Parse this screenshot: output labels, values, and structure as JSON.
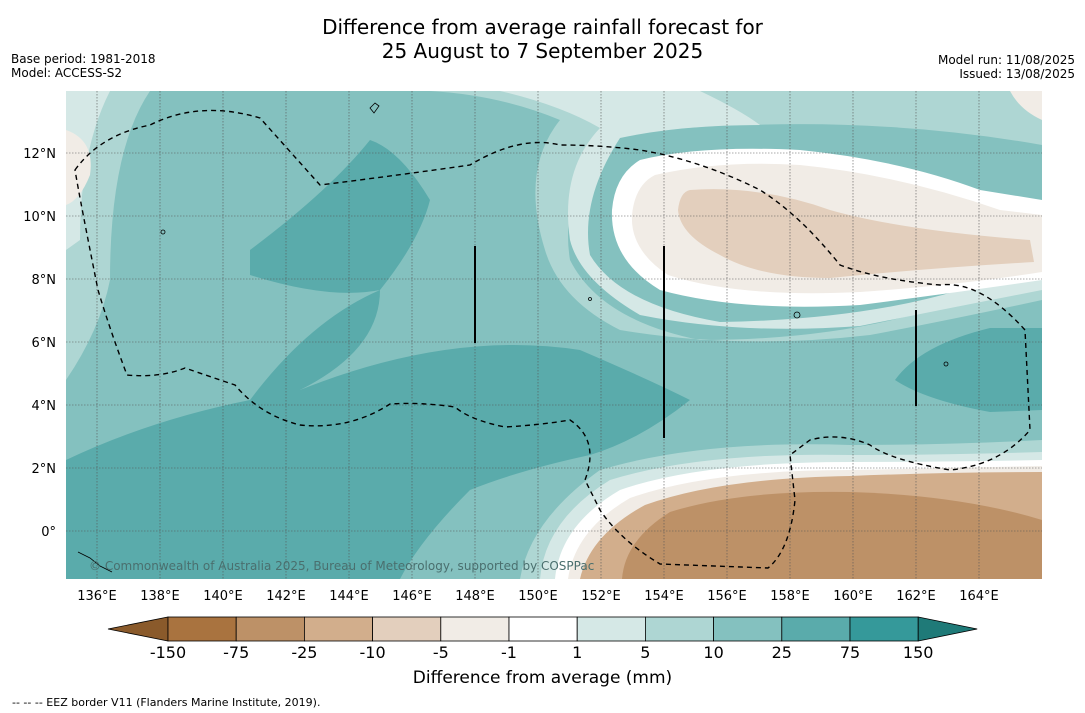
{
  "title_line1": "Difference from average rainfall forecast for",
  "title_line2": "25 August to 7 September 2025",
  "base_period": "Base period: 1981-2018",
  "model": "Model: ACCESS-S2",
  "model_run": "Model run: 11/08/2025",
  "issued": "Issued: 13/08/2025",
  "copyright": "© Commonwealth of Australia 2025, Bureau of Meteorology, supported by COSPPac",
  "lat_labels": [
    "12°N",
    "10°N",
    "8°N",
    "6°N",
    "4°N",
    "2°N",
    "0°"
  ],
  "lon_labels": [
    "136°E",
    "138°E",
    "140°E",
    "142°E",
    "144°E",
    "146°E",
    "148°E",
    "150°E",
    "152°E",
    "154°E",
    "156°E",
    "158°E",
    "160°E",
    "162°E",
    "164°E"
  ],
  "colorbar": {
    "label": "Difference from average (mm)",
    "ticks": [
      "-150",
      "-75",
      "-25",
      "-10",
      "-5",
      "-1",
      "1",
      "5",
      "10",
      "25",
      "75",
      "150"
    ],
    "colors": [
      "#8a5a2b",
      "#a9733f",
      "#bd9167",
      "#d2ae8c",
      "#e3cfbd",
      "#f1ece6",
      "#ffffff",
      "#d5e8e6",
      "#aed6d3",
      "#84c1bf",
      "#5aabab",
      "#35999a",
      "#1f7a78"
    ]
  },
  "legend_footnote": "--  --  -- EEZ border V11 (Flanders Marine Institute, 2019)."
}
